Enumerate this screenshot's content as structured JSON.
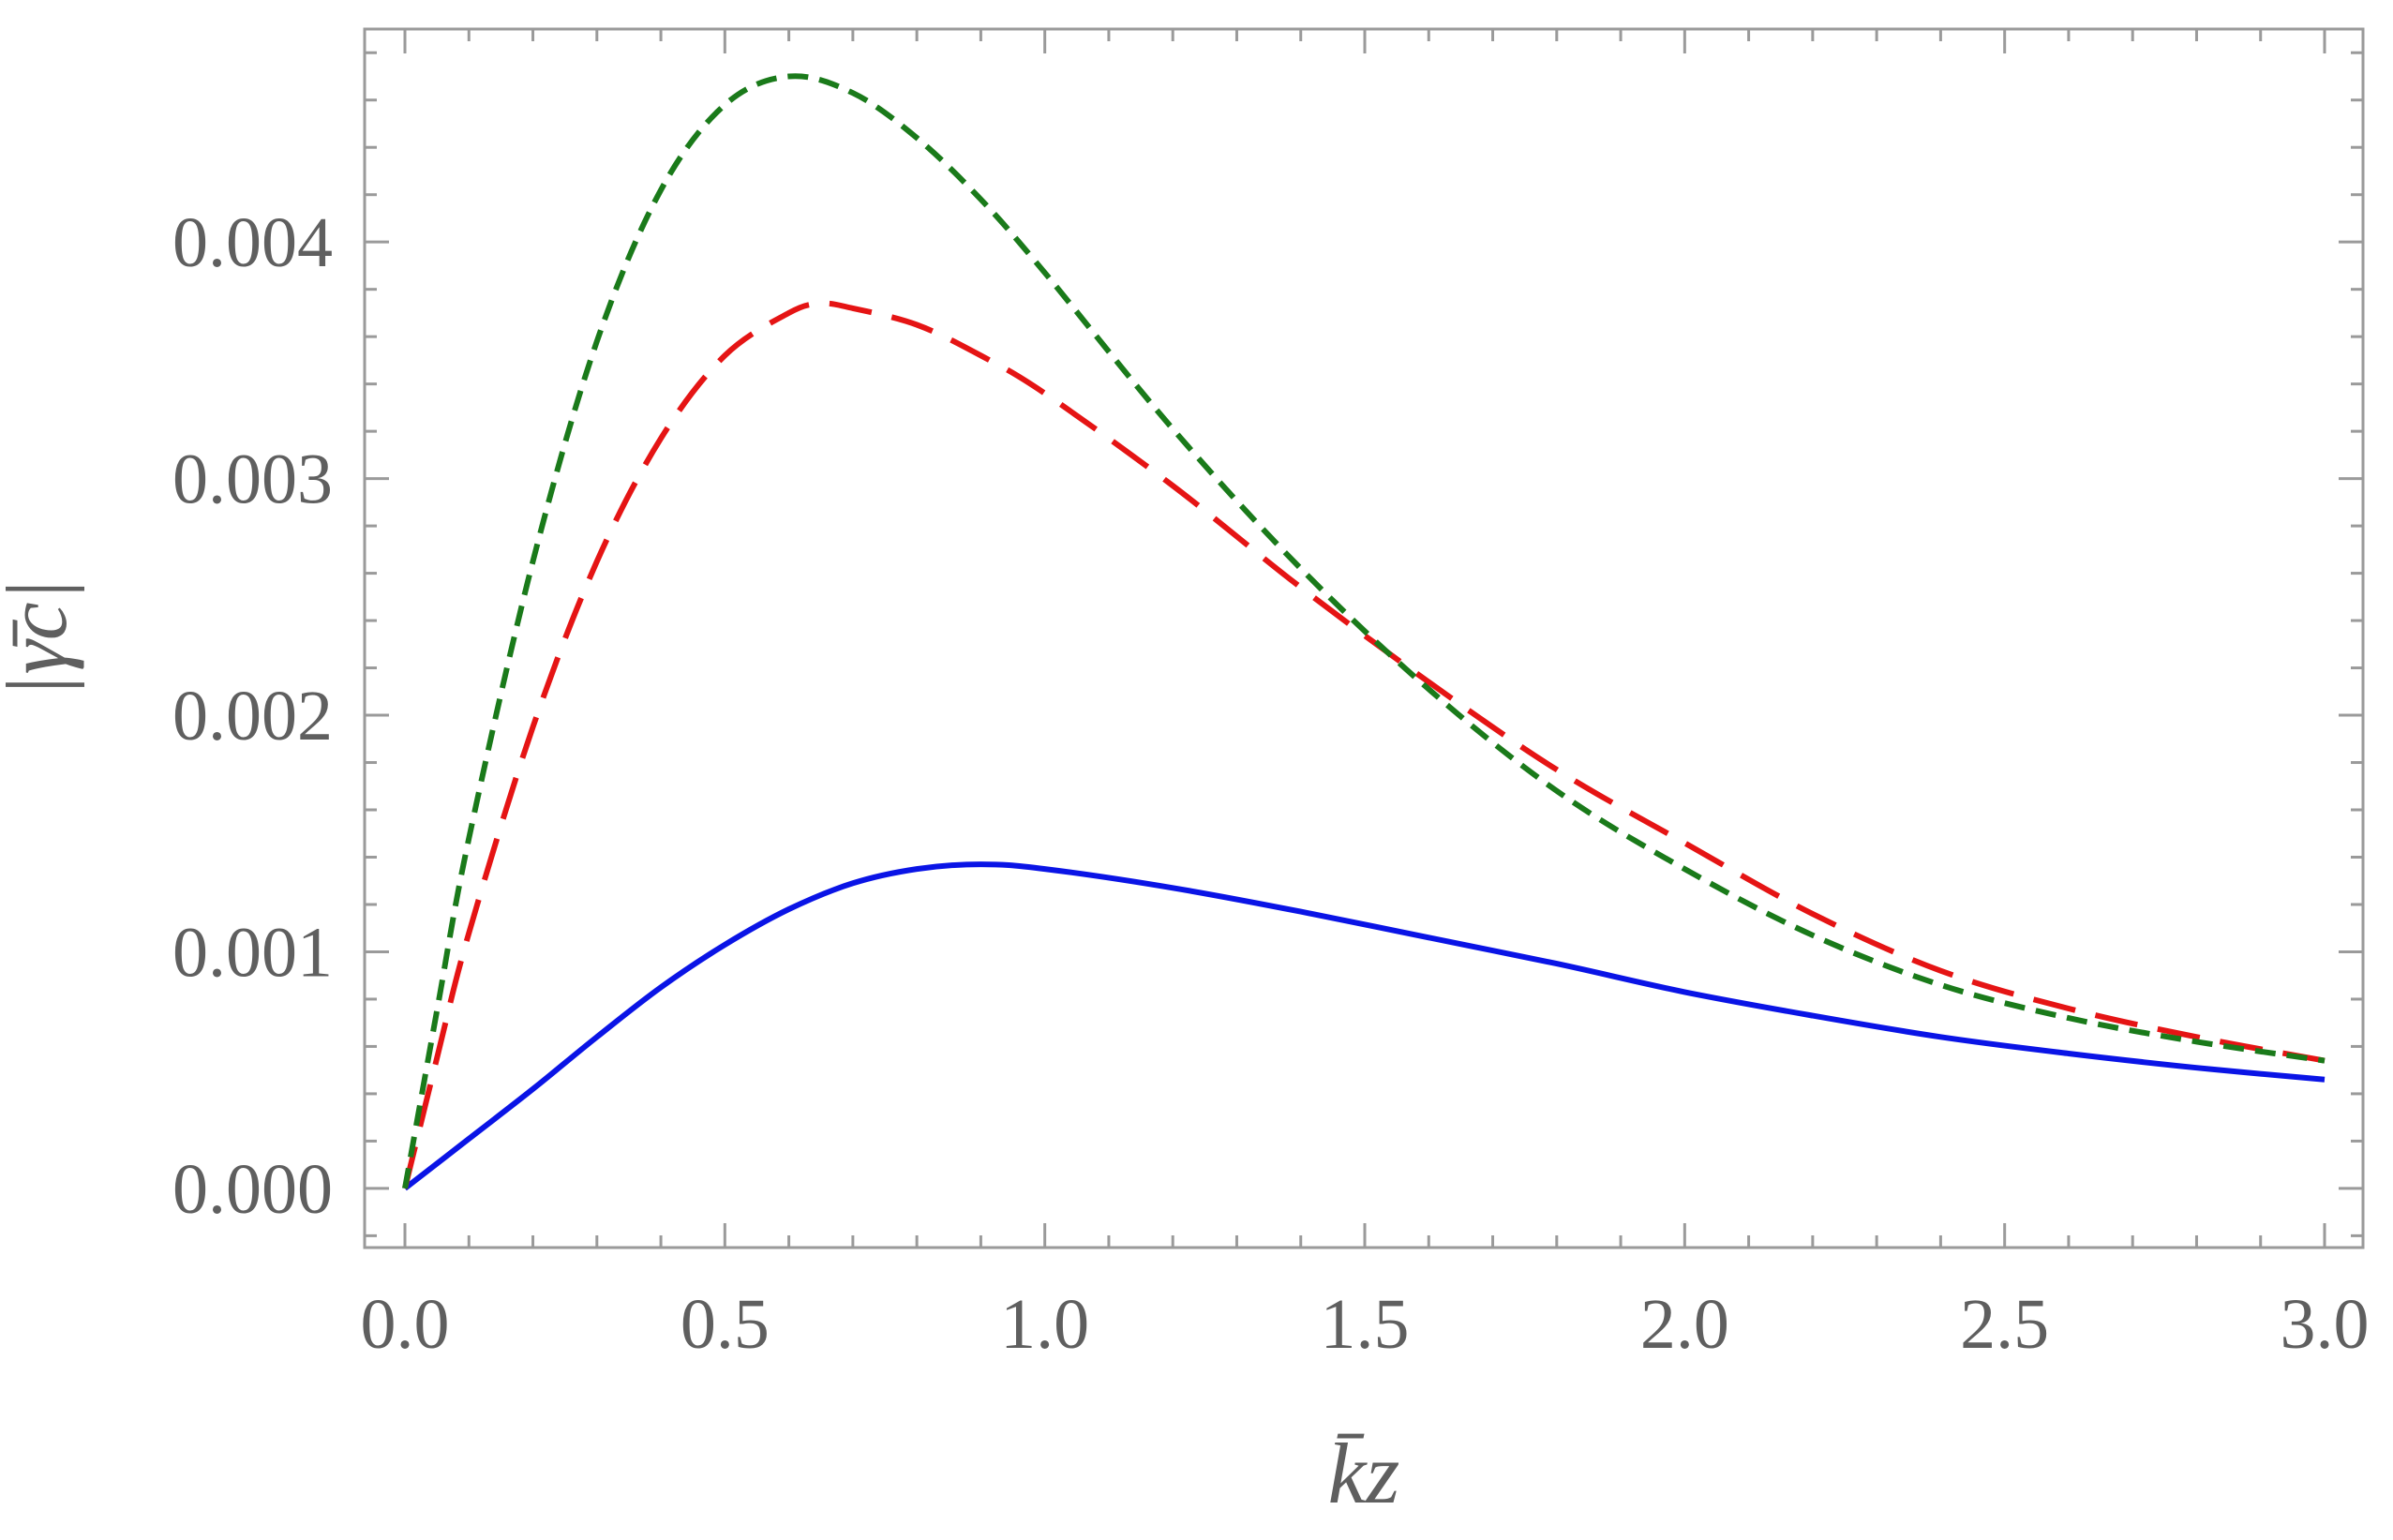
{
  "chart_data": {
    "type": "line",
    "title": "",
    "xlabel": "k̄z",
    "ylabel": "|γ̄c|",
    "xlim": [
      0.0,
      3.0
    ],
    "ylim": [
      -0.00025,
      0.0049
    ],
    "x_ticks": [
      0.0,
      0.5,
      1.0,
      1.5,
      2.0,
      2.5,
      3.0
    ],
    "x_tick_labels": [
      "0.0",
      "0.5",
      "1.0",
      "1.5",
      "2.0",
      "2.5",
      "3.0"
    ],
    "y_ticks": [
      0.0,
      0.001,
      0.002,
      0.003,
      0.004
    ],
    "y_tick_labels": [
      "0.000",
      "0.001",
      "0.002",
      "0.003",
      "0.004"
    ],
    "grid": false,
    "legend": "none",
    "frame": "full box with inward ticks on all sides",
    "series": [
      {
        "color": "#0a14e6",
        "style": "solid",
        "x": [
          0.0,
          0.1,
          0.2,
          0.3,
          0.4,
          0.5,
          0.6,
          0.7,
          0.8,
          0.9,
          1.0,
          1.2,
          1.4,
          1.6,
          1.8,
          2.0,
          2.2,
          2.4,
          2.6,
          2.8,
          3.0
        ],
        "y": [
          0.0,
          0.00021,
          0.00042,
          0.00064,
          0.00085,
          0.00103,
          0.00118,
          0.00129,
          0.00135,
          0.00137,
          0.00135,
          0.00127,
          0.00117,
          0.00106,
          0.00095,
          0.00083,
          0.00073,
          0.00064,
          0.00057,
          0.00051,
          0.00046
        ]
      },
      {
        "color": "#e51414",
        "style": "long-dash",
        "x": [
          0.0,
          0.05,
          0.1,
          0.2,
          0.3,
          0.4,
          0.5,
          0.6,
          0.65,
          0.7,
          0.8,
          0.9,
          1.0,
          1.2,
          1.4,
          1.6,
          1.8,
          2.0,
          2.2,
          2.4,
          2.6,
          2.8,
          3.0
        ],
        "y": [
          0.0,
          0.00055,
          0.00108,
          0.00195,
          0.00265,
          0.00317,
          0.00352,
          0.0037,
          0.00374,
          0.00372,
          0.00365,
          0.00352,
          0.00336,
          0.00297,
          0.00254,
          0.00214,
          0.00177,
          0.00146,
          0.00116,
          0.00092,
          0.00076,
          0.00064,
          0.00054
        ]
      },
      {
        "color": "#1a7a1a",
        "style": "short-dash",
        "x": [
          0.0,
          0.05,
          0.1,
          0.2,
          0.3,
          0.4,
          0.5,
          0.6,
          0.7,
          0.8,
          0.9,
          1.0,
          1.2,
          1.4,
          1.6,
          1.8,
          2.0,
          2.2,
          2.4,
          2.6,
          2.8,
          3.0
        ],
        "y": [
          0.0,
          0.00075,
          0.00148,
          0.00265,
          0.00358,
          0.00422,
          0.00458,
          0.0047,
          0.00463,
          0.00444,
          0.00418,
          0.00387,
          0.00321,
          0.00262,
          0.00211,
          0.00168,
          0.00135,
          0.00107,
          0.00086,
          0.00072,
          0.00062,
          0.00054
        ]
      }
    ]
  }
}
